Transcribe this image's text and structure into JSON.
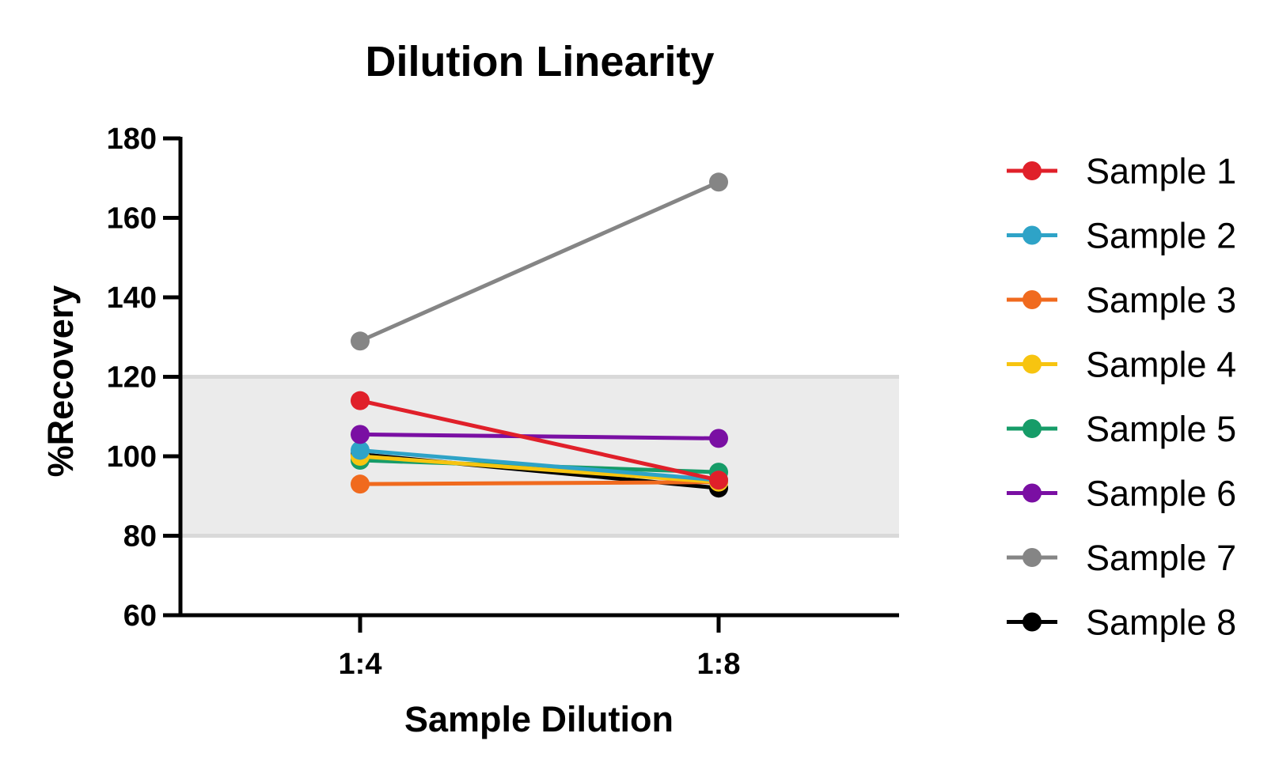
{
  "chart_data": {
    "type": "line",
    "title": "Dilution Linearity",
    "xlabel": "Sample Dilution",
    "ylabel": "%Recovery",
    "categories": [
      "1:4",
      "1:8"
    ],
    "ylim": [
      60,
      180
    ],
    "yticks": [
      60,
      80,
      100,
      120,
      140,
      160,
      180
    ],
    "grid": false,
    "shaded_band": {
      "from": 80,
      "to": 120,
      "color": "#ebebeb",
      "edge_color": "#d9d9d9"
    },
    "legend_position": "right",
    "series": [
      {
        "name": "Sample 1",
        "values": [
          114,
          94
        ],
        "color": "#e0202a"
      },
      {
        "name": "Sample 2",
        "values": [
          101.5,
          94
        ],
        "color": "#2ea3c7"
      },
      {
        "name": "Sample 3",
        "values": [
          93,
          93.5
        ],
        "color": "#f06a1e"
      },
      {
        "name": "Sample 4",
        "values": [
          100,
          93.5
        ],
        "color": "#f7c410"
      },
      {
        "name": "Sample 5",
        "values": [
          99,
          96
        ],
        "color": "#169c68"
      },
      {
        "name": "Sample 6",
        "values": [
          105.5,
          104.5
        ],
        "color": "#7a0fa3"
      },
      {
        "name": "Sample 7",
        "values": [
          129,
          169
        ],
        "color": "#858585"
      },
      {
        "name": "Sample 8",
        "values": [
          100.5,
          92
        ],
        "color": "#000000"
      }
    ]
  }
}
